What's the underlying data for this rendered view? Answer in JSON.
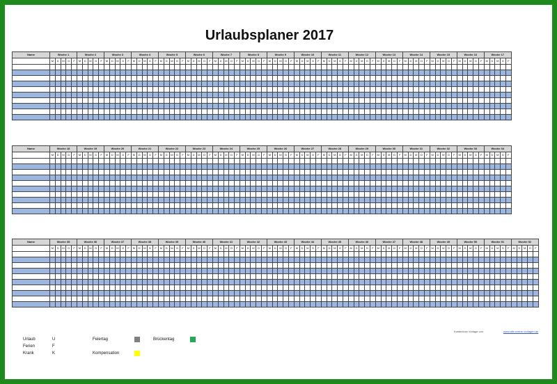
{
  "title": "Urlaubsplaner 2017",
  "name_header": "Name",
  "week_prefix": "Woche",
  "day_letters": [
    "M",
    "D",
    "M",
    "D",
    "F"
  ],
  "blocks": [
    {
      "weeks": [
        1,
        2,
        3,
        4,
        5,
        6,
        7,
        8,
        9,
        10,
        11,
        12,
        13,
        14,
        15,
        16,
        17
      ],
      "rows": 10
    },
    {
      "weeks": [
        18,
        19,
        20,
        21,
        22,
        23,
        24,
        25,
        26,
        27,
        28,
        29,
        30,
        31,
        32,
        33,
        34
      ],
      "rows": 10
    },
    {
      "weeks": [
        35,
        36,
        37,
        38,
        39,
        40,
        41,
        42,
        43,
        44,
        45,
        46,
        47,
        48,
        49,
        50,
        51,
        52
      ],
      "rows": 10
    }
  ],
  "footer": {
    "left_text": "Kostenlose Vorlage von",
    "right_text": "www.alle-meine-vorlagen.de"
  },
  "legend": {
    "urlaub_label": "Urlaub",
    "urlaub_code": "U",
    "ferien_label": "Ferien",
    "ferien_code": "F",
    "krank_label": "Krank",
    "krank_code": "K",
    "feiertag_label": "Feiertag",
    "feiertag_color": "#808080",
    "brueckentag_label": "Brückentag",
    "brueckentag_color": "#22aa55",
    "kompensation_label": "Kompensation",
    "kompensation_color": "#ffff00"
  }
}
